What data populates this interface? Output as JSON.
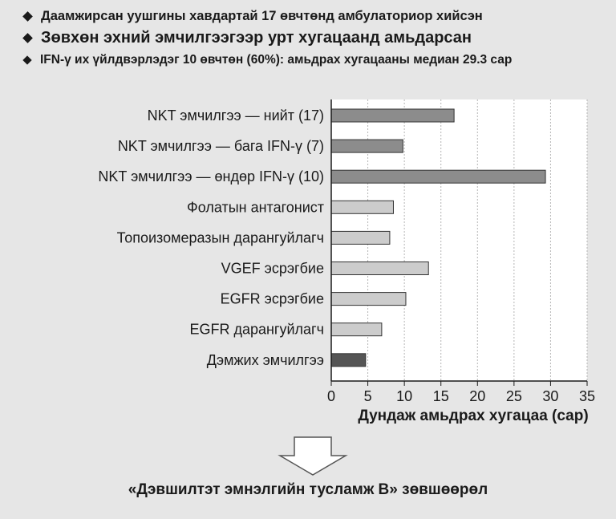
{
  "bullets": [
    "Даамжирсан уушгины хавдартай 17 өвчтөнд амбулаториор хийсэн",
    "Зөвхөн эхний эмчилгээгээр урт хугацаанд амьдарсан",
    "IFN-γ их үйлдвэрлэдэг 10 өвчтөн (60%): амьдрах хугацааны медиан 29.3 сар"
  ],
  "footer": "«Дэвшилтэт эмнэлгийн тусламж B» зөвшөөрөл",
  "colors": {
    "bar_nkt": "#8c8c8c",
    "bar_other": "#cccccc",
    "bar_support": "#555555",
    "bar_outline": "#333333",
    "background": "#e6e6e6"
  },
  "chart_data": {
    "type": "bar",
    "orientation": "horizontal",
    "categories": [
      "NKT эмчилгээ — нийт (17)",
      "NKT эмчилгээ — бага IFN-γ (7)",
      "NKT эмчилгээ — өндөр IFN-γ (10)",
      "Фолатын антагонист",
      "Топоизомеразын дарангуйлагч",
      "VGEF эсрэгбие",
      "EGFR эсрэгбие",
      "EGFR дарангуйлагч",
      "Дэмжих эмчилгээ"
    ],
    "values": [
      16.8,
      9.8,
      29.3,
      8.5,
      8.0,
      13.3,
      10.2,
      6.9,
      4.7
    ],
    "groups": [
      "nkt",
      "nkt",
      "nkt",
      "other",
      "other",
      "other",
      "other",
      "other",
      "support"
    ],
    "xlabel": "Дундаж амьдрах хугацаа (сар)",
    "xlim": [
      0,
      35
    ],
    "xticks": [
      0,
      5,
      10,
      15,
      20,
      25,
      30,
      35
    ],
    "grid": "vertical dashed"
  }
}
